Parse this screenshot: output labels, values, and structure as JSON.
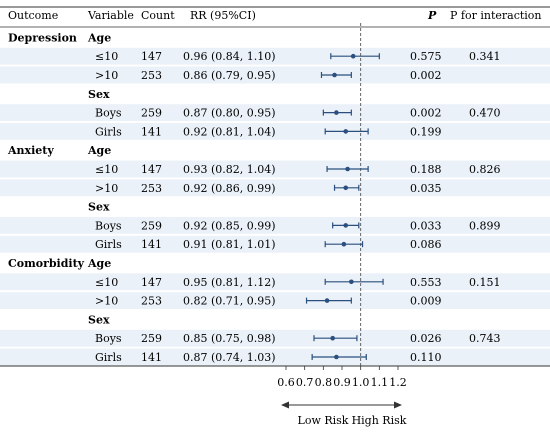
{
  "headers": {
    "outcome": "Outcome",
    "variable": "Variable",
    "count": "Count",
    "rr": "RR (95%CI)",
    "p": "P",
    "p_interaction": "P for interaction"
  },
  "rows": [
    {
      "type": "group",
      "outcome": "Depression",
      "variable": "Age"
    },
    {
      "type": "data",
      "variable": "≤10",
      "count": "147",
      "rr_text": "0.96 (0.84, 1.10)",
      "rr": 0.96,
      "lo": 0.84,
      "hi": 1.1,
      "p": "0.575",
      "p_int": "0.341"
    },
    {
      "type": "data",
      "variable": ">10",
      "count": "253",
      "rr_text": "0.86 (0.79, 0.95)",
      "rr": 0.86,
      "lo": 0.79,
      "hi": 0.95,
      "p": "0.002",
      "p_int": ""
    },
    {
      "type": "group",
      "outcome": "",
      "variable": "Sex"
    },
    {
      "type": "data",
      "variable": "Boys",
      "count": "259",
      "rr_text": "0.87 (0.80, 0.95)",
      "rr": 0.87,
      "lo": 0.8,
      "hi": 0.95,
      "p": "0.002",
      "p_int": "0.470"
    },
    {
      "type": "data",
      "variable": "Girls",
      "count": "141",
      "rr_text": "0.92 (0.81, 1.04)",
      "rr": 0.92,
      "lo": 0.81,
      "hi": 1.04,
      "p": "0.199",
      "p_int": ""
    },
    {
      "type": "group",
      "outcome": "Anxiety",
      "variable": "Age"
    },
    {
      "type": "data",
      "variable": "≤10",
      "count": "147",
      "rr_text": "0.93 (0.82, 1.04)",
      "rr": 0.93,
      "lo": 0.82,
      "hi": 1.04,
      "p": "0.188",
      "p_int": "0.826"
    },
    {
      "type": "data",
      "variable": ">10",
      "count": "253",
      "rr_text": "0.92 (0.86, 0.99)",
      "rr": 0.92,
      "lo": 0.86,
      "hi": 0.99,
      "p": "0.035",
      "p_int": ""
    },
    {
      "type": "group",
      "outcome": "",
      "variable": "Sex"
    },
    {
      "type": "data",
      "variable": "Boys",
      "count": "259",
      "rr_text": "0.92 (0.85, 0.99)",
      "rr": 0.92,
      "lo": 0.85,
      "hi": 0.99,
      "p": "0.033",
      "p_int": "0.899"
    },
    {
      "type": "data",
      "variable": "Girls",
      "count": "141",
      "rr_text": "0.91 (0.81, 1.01)",
      "rr": 0.91,
      "lo": 0.81,
      "hi": 1.01,
      "p": "0.086",
      "p_int": ""
    },
    {
      "type": "group",
      "outcome": "Comorbidity",
      "variable": "Age"
    },
    {
      "type": "data",
      "variable": "≤10",
      "count": "147",
      "rr_text": "0.95 (0.81, 1.12)",
      "rr": 0.95,
      "lo": 0.81,
      "hi": 1.12,
      "p": "0.553",
      "p_int": "0.151"
    },
    {
      "type": "data",
      "variable": ">10",
      "count": "253",
      "rr_text": "0.82 (0.71, 0.95)",
      "rr": 0.82,
      "lo": 0.71,
      "hi": 0.95,
      "p": "0.009",
      "p_int": ""
    },
    {
      "type": "group",
      "outcome": "",
      "variable": "Sex"
    },
    {
      "type": "data",
      "variable": "Boys",
      "count": "259",
      "rr_text": "0.85 (0.75, 0.98)",
      "rr": 0.85,
      "lo": 0.75,
      "hi": 0.98,
      "p": "0.026",
      "p_int": "0.743"
    },
    {
      "type": "data",
      "variable": "Girls",
      "count": "141",
      "rr_text": "0.87 (0.74, 1.03)",
      "rr": 0.87,
      "lo": 0.74,
      "hi": 1.03,
      "p": "0.110",
      "p_int": ""
    }
  ],
  "axis": {
    "ticks": [
      0.6,
      0.7,
      0.8,
      0.9,
      1.0,
      1.1,
      1.2
    ],
    "tick_labels": [
      "0.6",
      "0.7",
      "0.8",
      "0.9",
      "1.0",
      "1.1",
      "1.2"
    ],
    "range": [
      0.6,
      1.2
    ],
    "reference": 1.0,
    "low_label": "Low Risk",
    "high_label": "High Risk"
  },
  "colors": {
    "point": "#2b4f7e",
    "row_band": "#eaf1f8",
    "rule": "#333333",
    "reference_line": "#555555"
  },
  "chart_data": {
    "type": "forest",
    "xlabel": "",
    "ylabel": "",
    "xlim": [
      0.6,
      1.2
    ],
    "reference_value": 1.0,
    "series": [
      {
        "name": "Depression",
        "categories": [
          "Age ≤10",
          "Age >10",
          "Sex Boys",
          "Sex Girls"
        ],
        "rr": [
          0.96,
          0.86,
          0.87,
          0.92
        ],
        "lower": [
          0.84,
          0.79,
          0.8,
          0.81
        ],
        "upper": [
          1.1,
          0.95,
          0.95,
          1.04
        ]
      },
      {
        "name": "Anxiety",
        "categories": [
          "Age ≤10",
          "Age >10",
          "Sex Boys",
          "Sex Girls"
        ],
        "rr": [
          0.93,
          0.92,
          0.92,
          0.91
        ],
        "lower": [
          0.82,
          0.86,
          0.85,
          0.81
        ],
        "upper": [
          1.04,
          0.99,
          0.99,
          1.01
        ]
      },
      {
        "name": "Comorbidity",
        "categories": [
          "Age ≤10",
          "Age >10",
          "Sex Boys",
          "Sex Girls"
        ],
        "rr": [
          0.95,
          0.82,
          0.85,
          0.87
        ],
        "lower": [
          0.81,
          0.71,
          0.75,
          0.74
        ],
        "upper": [
          1.12,
          0.95,
          0.98,
          1.03
        ]
      }
    ]
  }
}
